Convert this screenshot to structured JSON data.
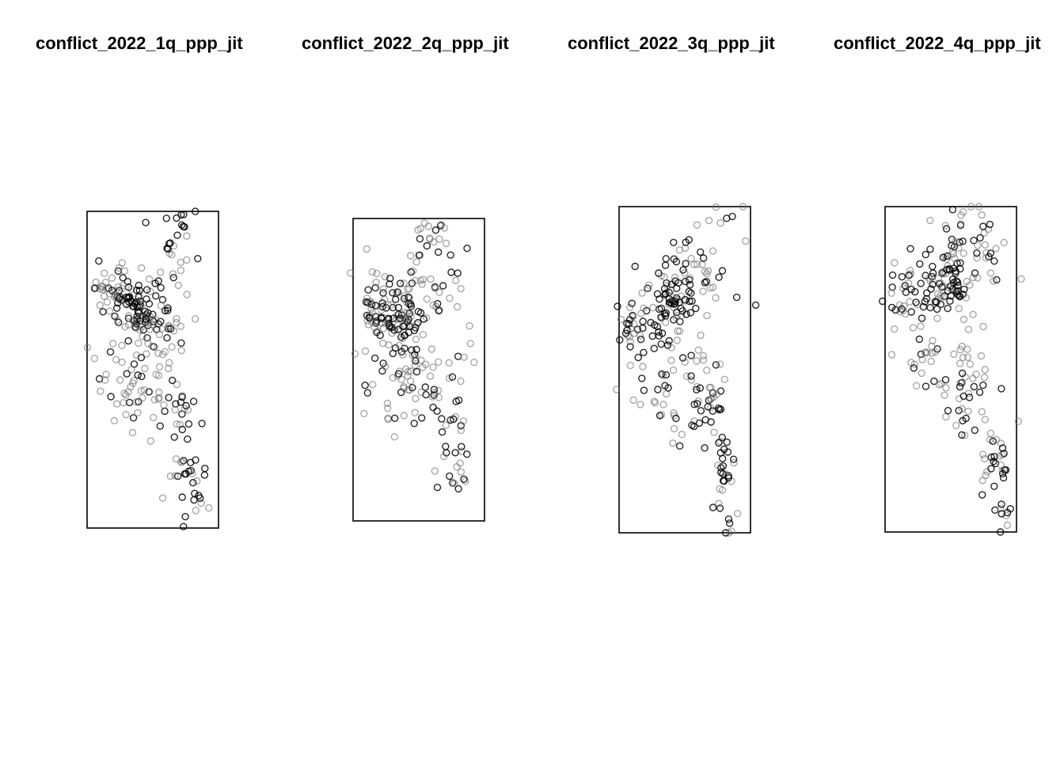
{
  "chart_data": [
    {
      "type": "scatter",
      "title": "conflict_2022_1q_ppp_jit",
      "seed": 11,
      "parts": [
        {
          "cx": 0.4,
          "cy": 0.31,
          "sx": 0.09,
          "sy": 0.045,
          "n": 70,
          "dark": 0.7
        },
        {
          "cx": 0.25,
          "cy": 0.26,
          "sx": 0.12,
          "sy": 0.05,
          "n": 40,
          "dark": 0.45
        },
        {
          "cx": 0.5,
          "cy": 0.4,
          "sx": 0.18,
          "sy": 0.09,
          "n": 55,
          "dark": 0.25
        },
        {
          "cx": 0.38,
          "cy": 0.55,
          "sx": 0.14,
          "sy": 0.07,
          "n": 45,
          "dark": 0.3
        },
        {
          "cx": 0.72,
          "cy": 0.7,
          "sx": 0.06,
          "sy": 0.12,
          "n": 35,
          "dark": 0.55
        },
        {
          "cx": 0.85,
          "cy": 0.86,
          "sx": 0.05,
          "sy": 0.06,
          "n": 14,
          "dark": 0.6
        },
        {
          "cx": 0.7,
          "cy": 0.12,
          "sx": 0.1,
          "sy": 0.06,
          "n": 18,
          "dark": 0.5
        },
        {
          "cx": 0.72,
          "cy": 0.02,
          "sx": 0.03,
          "sy": 0.02,
          "n": 6,
          "dark": 0.7
        }
      ]
    },
    {
      "type": "scatter",
      "title": "conflict_2022_2q_ppp_jit",
      "seed": 23,
      "parts": [
        {
          "cx": 0.35,
          "cy": 0.32,
          "sx": 0.1,
          "sy": 0.05,
          "n": 70,
          "dark": 0.7
        },
        {
          "cx": 0.2,
          "cy": 0.3,
          "sx": 0.1,
          "sy": 0.06,
          "n": 35,
          "dark": 0.45
        },
        {
          "cx": 0.55,
          "cy": 0.22,
          "sx": 0.18,
          "sy": 0.08,
          "n": 45,
          "dark": 0.3
        },
        {
          "cx": 0.4,
          "cy": 0.48,
          "sx": 0.14,
          "sy": 0.08,
          "n": 45,
          "dark": 0.3
        },
        {
          "cx": 0.5,
          "cy": 0.6,
          "sx": 0.16,
          "sy": 0.05,
          "n": 30,
          "dark": 0.45
        },
        {
          "cx": 0.75,
          "cy": 0.78,
          "sx": 0.07,
          "sy": 0.08,
          "n": 28,
          "dark": 0.6
        },
        {
          "cx": 0.62,
          "cy": 0.05,
          "sx": 0.1,
          "sy": 0.04,
          "n": 14,
          "dark": 0.4
        },
        {
          "cx": 0.85,
          "cy": 0.4,
          "sx": 0.08,
          "sy": 0.05,
          "n": 6,
          "dark": 0.1
        }
      ]
    },
    {
      "type": "scatter",
      "title": "conflict_2022_3q_ppp_jit",
      "seed": 37,
      "parts": [
        {
          "cx": 0.4,
          "cy": 0.29,
          "sx": 0.09,
          "sy": 0.05,
          "n": 65,
          "dark": 0.7
        },
        {
          "cx": 0.1,
          "cy": 0.38,
          "sx": 0.07,
          "sy": 0.04,
          "n": 25,
          "dark": 0.6
        },
        {
          "cx": 0.55,
          "cy": 0.2,
          "sx": 0.2,
          "sy": 0.06,
          "n": 45,
          "dark": 0.35
        },
        {
          "cx": 0.4,
          "cy": 0.52,
          "sx": 0.18,
          "sy": 0.1,
          "n": 55,
          "dark": 0.3
        },
        {
          "cx": 0.68,
          "cy": 0.63,
          "sx": 0.08,
          "sy": 0.06,
          "n": 30,
          "dark": 0.55
        },
        {
          "cx": 0.8,
          "cy": 0.8,
          "sx": 0.05,
          "sy": 0.08,
          "n": 25,
          "dark": 0.6
        },
        {
          "cx": 0.85,
          "cy": 0.97,
          "sx": 0.05,
          "sy": 0.03,
          "n": 6,
          "dark": 0.3
        },
        {
          "cx": 0.8,
          "cy": 0.05,
          "sx": 0.1,
          "sy": 0.04,
          "n": 8,
          "dark": 0.3
        }
      ]
    },
    {
      "type": "scatter",
      "title": "conflict_2022_4q_ppp_jit",
      "seed": 53,
      "parts": [
        {
          "cx": 0.47,
          "cy": 0.23,
          "sx": 0.09,
          "sy": 0.06,
          "n": 70,
          "dark": 0.7
        },
        {
          "cx": 0.2,
          "cy": 0.28,
          "sx": 0.12,
          "sy": 0.06,
          "n": 40,
          "dark": 0.55
        },
        {
          "cx": 0.7,
          "cy": 0.15,
          "sx": 0.15,
          "sy": 0.06,
          "n": 30,
          "dark": 0.3
        },
        {
          "cx": 0.45,
          "cy": 0.45,
          "sx": 0.18,
          "sy": 0.08,
          "n": 45,
          "dark": 0.3
        },
        {
          "cx": 0.65,
          "cy": 0.6,
          "sx": 0.08,
          "sy": 0.06,
          "n": 25,
          "dark": 0.5
        },
        {
          "cx": 0.85,
          "cy": 0.8,
          "sx": 0.06,
          "sy": 0.08,
          "n": 30,
          "dark": 0.6
        },
        {
          "cx": 0.6,
          "cy": 0.03,
          "sx": 0.12,
          "sy": 0.03,
          "n": 10,
          "dark": 0.5
        },
        {
          "cx": 0.93,
          "cy": 0.93,
          "sx": 0.04,
          "sy": 0.03,
          "n": 8,
          "dark": 0.6
        }
      ]
    }
  ]
}
